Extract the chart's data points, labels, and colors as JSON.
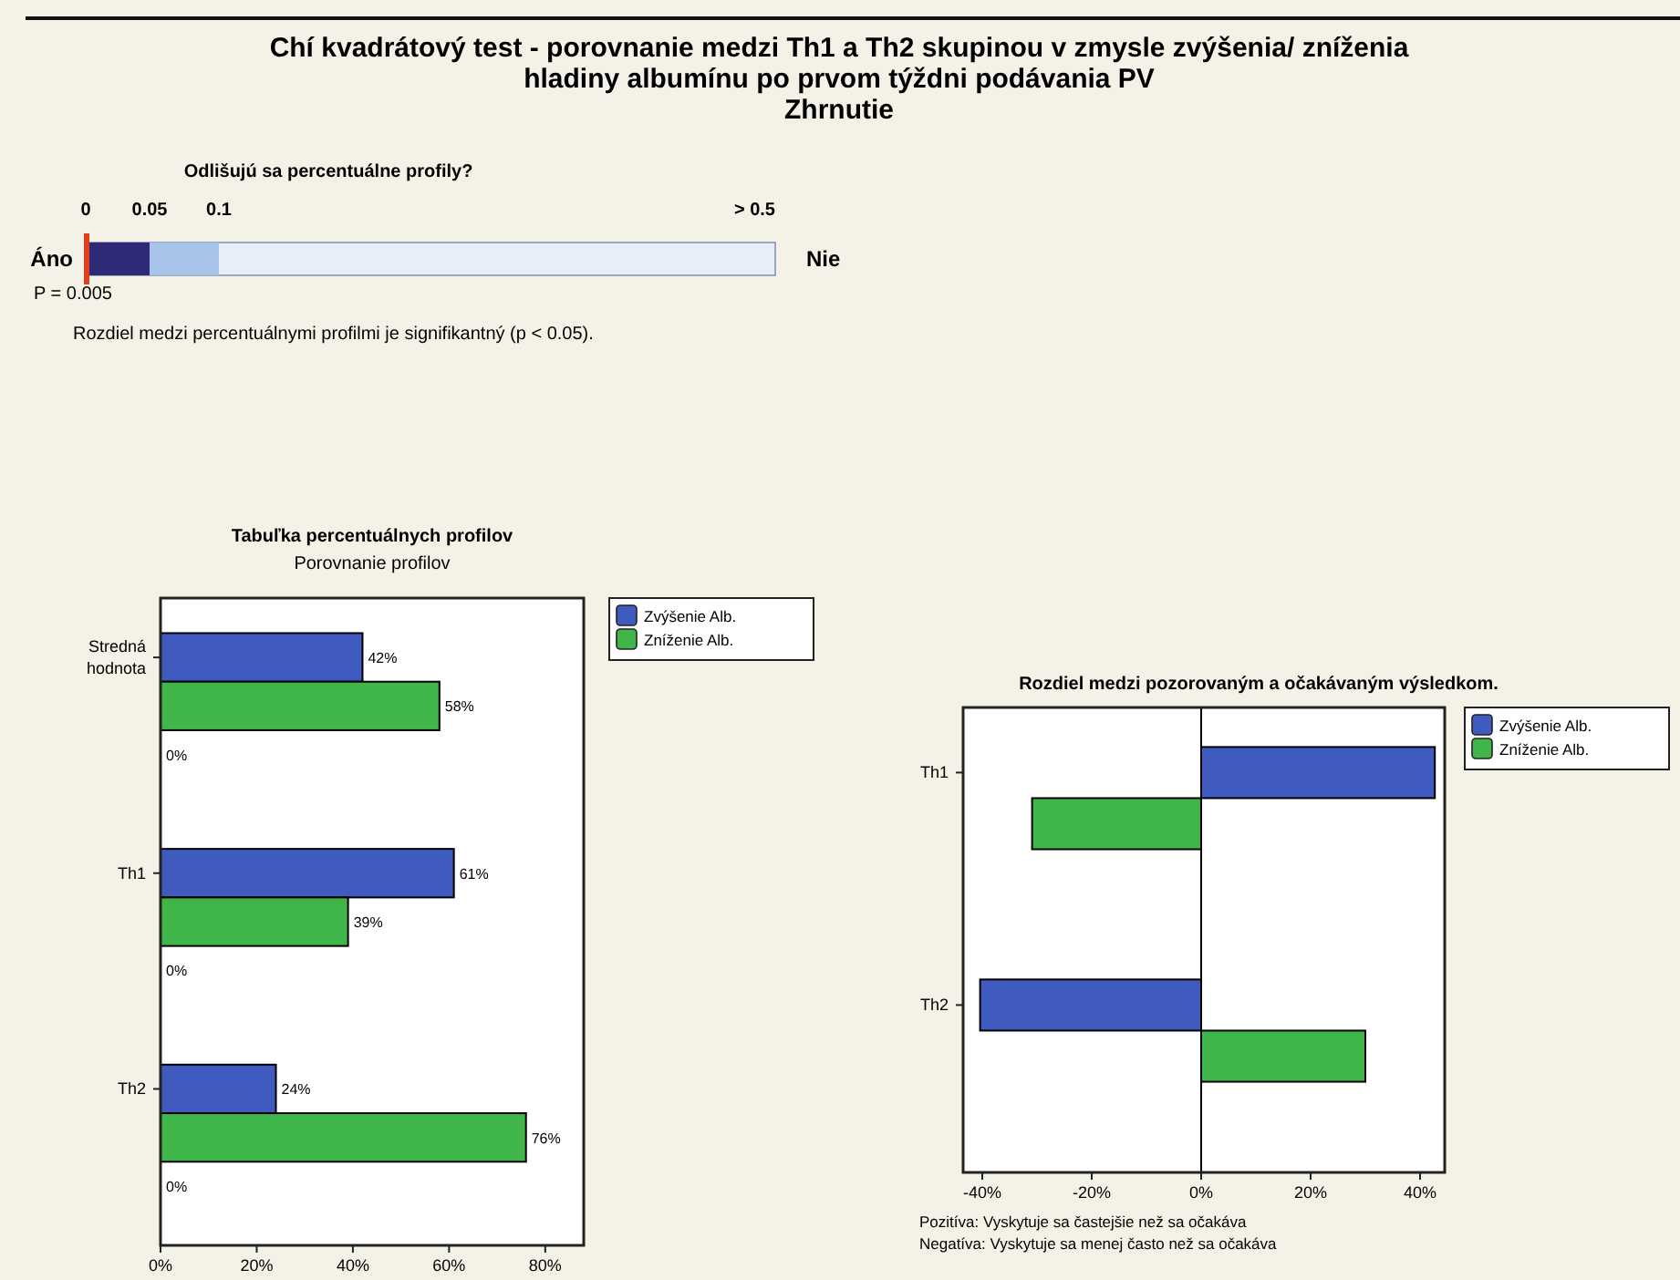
{
  "chart_data": [
    {
      "type": "other",
      "title": "Chí kvadrátový test - porovnanie medzi Th1 a Th2 skupinou v zmysle zvýšenia/ zníženia hladiny albumínu po prvom týždni podávania PV",
      "subtitle": "Zhrnutie",
      "annotations": [
        "Odlišujú sa percentuálne profily?",
        "0",
        "0.05",
        "0.1",
        "> 0.5",
        "Áno",
        "Nie",
        "P = 0.005",
        "Rozdiel medzi percentuálnymi profilmi je signifikantný (p < 0.05)."
      ]
    },
    {
      "type": "bar",
      "orientation": "horizontal",
      "title": "Tabuľka percentuálnych profilov",
      "subtitle": "Porovnanie profilov",
      "categories": [
        "Stredná hodnota",
        "Th1",
        "Th2"
      ],
      "series": [
        {
          "name": "Zvýšenie Alb.",
          "color": "#3f5bbf",
          "values": [
            42,
            61,
            24
          ],
          "value_labels": [
            "42%",
            "61%",
            "24%"
          ]
        },
        {
          "name": "Zníženie Alb.",
          "color": "#40b54a",
          "values": [
            58,
            39,
            76
          ],
          "value_labels": [
            "58%",
            "39%",
            "76%"
          ]
        },
        {
          "color": "#808080",
          "values": [
            0,
            0,
            0
          ],
          "value_labels": [
            "0%",
            "0%",
            "0%"
          ]
        }
      ],
      "xlim": [
        0,
        88
      ],
      "xticks": [
        {
          "value": 0,
          "label": "0%"
        },
        {
          "value": 20,
          "label": "20%"
        },
        {
          "value": 40,
          "label": "40%"
        },
        {
          "value": 60,
          "label": "60%"
        },
        {
          "value": 80,
          "label": "80%"
        }
      ],
      "grid": false,
      "legend": "top right"
    },
    {
      "type": "bar",
      "orientation": "horizontal",
      "title": "Rozdiel medzi pozorovaným a očakávaným výsledkom.",
      "categories": [
        "Th1",
        "Th2"
      ],
      "series": [
        {
          "name": "Zvýšenie Alb.",
          "color": "#3f5bbf",
          "values": [
            42.7,
            -40.4
          ]
        },
        {
          "name": "Zníženie Alb.",
          "color": "#40b54a",
          "values": [
            -30.9,
            30
          ]
        }
      ],
      "xlim": [
        -43.5,
        44.5
      ],
      "xticks": [
        {
          "value": -40,
          "label": "-40%"
        },
        {
          "value": -20,
          "label": "-20%"
        },
        {
          "value": 0,
          "label": "0%"
        },
        {
          "value": 20,
          "label": "20%"
        },
        {
          "value": 40,
          "label": "40%"
        }
      ],
      "ref_lines": [
        {
          "axis": "x",
          "value": 0
        }
      ],
      "grid": false,
      "legend": "top right",
      "annotations": [
        "Pozitíva:  Vyskytuje sa častejšie než sa očakáva",
        "Negatíva:  Vyskytuje sa menej často než sa očakáva"
      ]
    }
  ]
}
